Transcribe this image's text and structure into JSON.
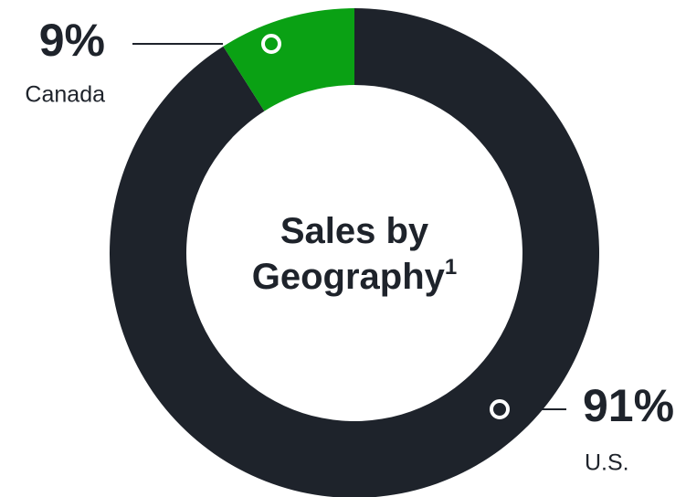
{
  "chart_data": {
    "type": "donut",
    "title": "Sales by Geography",
    "title_footnote": "1",
    "categories": [
      "Canada",
      "U.S."
    ],
    "values": [
      9,
      91
    ],
    "value_labels": [
      "9%",
      "91%"
    ],
    "colors": [
      "#0aa114",
      "#1e232b"
    ]
  }
}
